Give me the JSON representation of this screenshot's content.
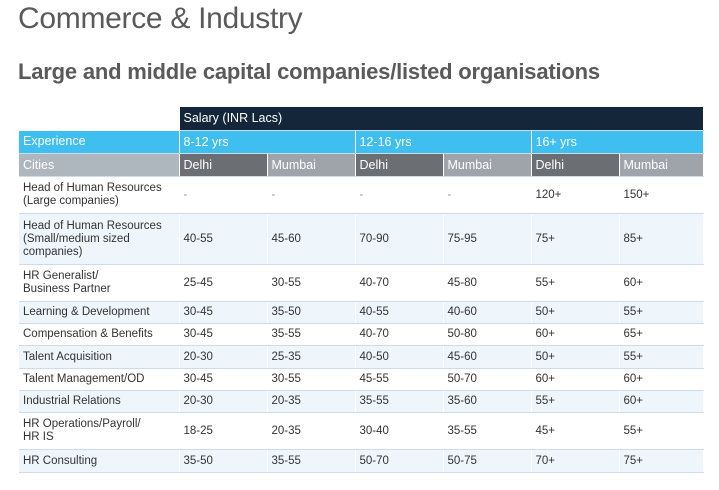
{
  "page": {
    "title": "Commerce & Industry",
    "subtitle": "Large and middle capital companies/listed organisations"
  },
  "table": {
    "salary_header": "Salary (INR Lacs)",
    "experience_label": "Experience",
    "experience_bands": [
      "8-12 yrs",
      "12-16 yrs",
      "16+ yrs"
    ],
    "cities_label": "Cities",
    "cities": [
      "Delhi",
      "Mumbai",
      "Delhi",
      "Mumbai",
      "Delhi",
      "Mumbai"
    ],
    "rows": [
      {
        "role": "Head of Human Resources\n(Large companies)",
        "values": [
          "-",
          "-",
          "-",
          "-",
          "120+",
          "150+"
        ]
      },
      {
        "role": "Head of Human Resources\n(Small/medium sized\ncompanies)",
        "values": [
          "40-55",
          "45-60",
          "70-90",
          "75-95",
          "75+",
          "85+"
        ]
      },
      {
        "role": "HR Generalist/\nBusiness Partner",
        "values": [
          "25-45",
          "30-55",
          "40-70",
          "45-80",
          "55+",
          "60+"
        ]
      },
      {
        "role": "Learning & Development",
        "values": [
          "30-45",
          "35-50",
          "40-55",
          "40-60",
          "50+",
          "55+"
        ]
      },
      {
        "role": "Compensation & Benefits",
        "values": [
          "30-45",
          "35-55",
          "40-70",
          "50-80",
          "60+",
          "65+"
        ]
      },
      {
        "role": "Talent Acquisition",
        "values": [
          "20-30",
          "25-35",
          "40-50",
          "45-60",
          "50+",
          "55+"
        ]
      },
      {
        "role": "Talent Management/OD",
        "values": [
          "30-45",
          "30-55",
          "45-55",
          "50-70",
          "60+",
          "60+"
        ]
      },
      {
        "role": "Industrial Relations",
        "values": [
          "20-30",
          "20-35",
          "35-55",
          "35-60",
          "55+",
          "60+"
        ]
      },
      {
        "role": "HR Operations/Payroll/\nHR IS",
        "values": [
          "18-25",
          "20-35",
          "30-40",
          "35-55",
          "45+",
          "55+"
        ]
      },
      {
        "role": "HR Consulting",
        "values": [
          "35-50",
          "35-55",
          "50-70",
          "50-75",
          "70+",
          "75+"
        ]
      }
    ]
  },
  "colors": {
    "salary_header_bg": "#13263a",
    "experience_bg": "#3fbfef",
    "cities_bg": "#aeb6be",
    "city_dark_bg": "#6b6f74",
    "city_light_bg": "#9ea4aa",
    "row_shade_bg": "#eef5fb"
  }
}
